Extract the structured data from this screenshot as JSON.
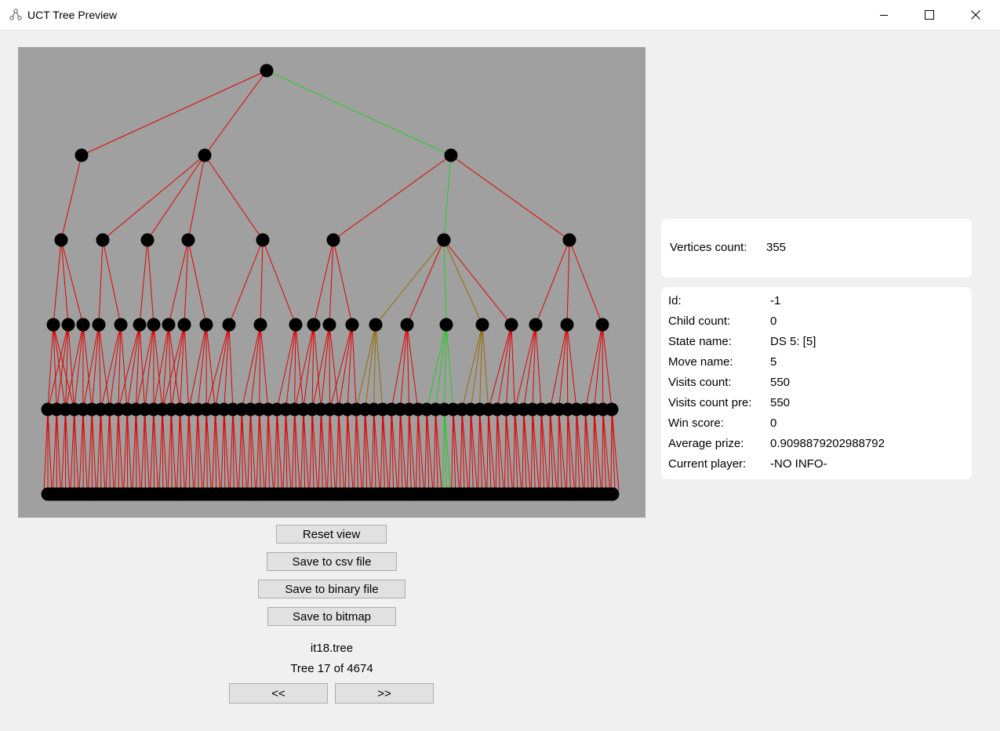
{
  "window": {
    "title": "UCT Tree Preview",
    "icon": "tree-icon",
    "controls": [
      "minimize-icon",
      "maximize-icon",
      "close-icon"
    ]
  },
  "tree": {
    "colors": {
      "background": "#a0a0a0",
      "edge_default": "#e00000",
      "edge_selected": "#22cc22",
      "edge_mixed": "#9a6a00",
      "node": "#000000"
    }
  },
  "buttons": {
    "reset": "Reset view",
    "save_csv": "Save to csv file",
    "save_binary": "Save to binary file",
    "save_bitmap": "Save to bitmap",
    "prev": "<<",
    "next": ">>"
  },
  "file": {
    "name": "it18.tree",
    "tree_counter": "Tree 17 of 4674"
  },
  "summary": {
    "vertices_label": "Vertices count:",
    "vertices_value": "355"
  },
  "details": [
    {
      "label": "Id:",
      "value": "-1"
    },
    {
      "label": "Child count:",
      "value": "0"
    },
    {
      "label": "State name:",
      "value": "DS 5: [5]"
    },
    {
      "label": "Move name:",
      "value": "5"
    },
    {
      "label": "Visits count:",
      "value": "550"
    },
    {
      "label": "Visits count pre:",
      "value": "550"
    },
    {
      "label": "Win score:",
      "value": "0"
    },
    {
      "label": "Average prize:",
      "value": "0.9098879202988792"
    },
    {
      "label": "Current player:",
      "value": "-NO INFO-"
    }
  ]
}
